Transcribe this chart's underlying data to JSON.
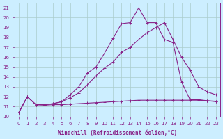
{
  "xlabel": "Windchill (Refroidissement éolien,°C)",
  "background_color": "#cceeff",
  "grid_color": "#aacccc",
  "line_color": "#882288",
  "xlim": [
    -0.5,
    23.5
  ],
  "ylim": [
    10,
    21.5
  ],
  "xticks": [
    0,
    1,
    2,
    3,
    4,
    5,
    6,
    7,
    8,
    9,
    10,
    11,
    12,
    13,
    14,
    15,
    16,
    17,
    18,
    19,
    20,
    21,
    22,
    23
  ],
  "yticks": [
    10,
    11,
    12,
    13,
    14,
    15,
    16,
    17,
    18,
    19,
    20,
    21
  ],
  "line1_x": [
    0,
    1,
    2,
    3,
    4,
    5,
    6,
    7,
    8,
    9,
    10,
    11,
    12,
    13,
    14,
    15,
    16,
    17,
    18,
    19,
    20,
    21,
    22,
    23
  ],
  "line1_y": [
    10.4,
    12.0,
    11.2,
    11.15,
    11.2,
    11.2,
    11.25,
    11.3,
    11.35,
    11.4,
    11.45,
    11.5,
    11.55,
    11.6,
    11.65,
    11.65,
    11.65,
    11.65,
    11.65,
    11.65,
    11.65,
    11.65,
    11.6,
    11.55
  ],
  "line2_x": [
    0,
    1,
    2,
    3,
    4,
    5,
    6,
    7,
    8,
    9,
    10,
    11,
    12,
    13,
    14,
    15,
    16,
    17,
    18,
    19,
    20,
    21,
    22,
    23
  ],
  "line2_y": [
    10.4,
    12.0,
    11.2,
    11.2,
    11.3,
    11.5,
    11.9,
    12.4,
    13.2,
    14.1,
    14.9,
    15.5,
    16.5,
    17.0,
    17.8,
    18.5,
    19.0,
    19.5,
    17.8,
    16.0,
    14.7,
    13.0,
    12.5,
    12.2
  ],
  "line3_x": [
    0,
    1,
    2,
    3,
    4,
    5,
    6,
    7,
    8,
    9,
    10,
    11,
    12,
    13,
    14,
    15,
    16,
    17,
    18,
    19,
    20,
    21,
    22,
    23
  ],
  "line3_y": [
    10.4,
    12.0,
    11.2,
    11.2,
    11.3,
    11.5,
    12.2,
    13.0,
    14.4,
    15.0,
    16.4,
    17.9,
    19.4,
    19.5,
    21.0,
    19.5,
    19.5,
    17.8,
    17.5,
    13.5,
    11.7,
    11.7,
    11.6,
    11.5
  ]
}
